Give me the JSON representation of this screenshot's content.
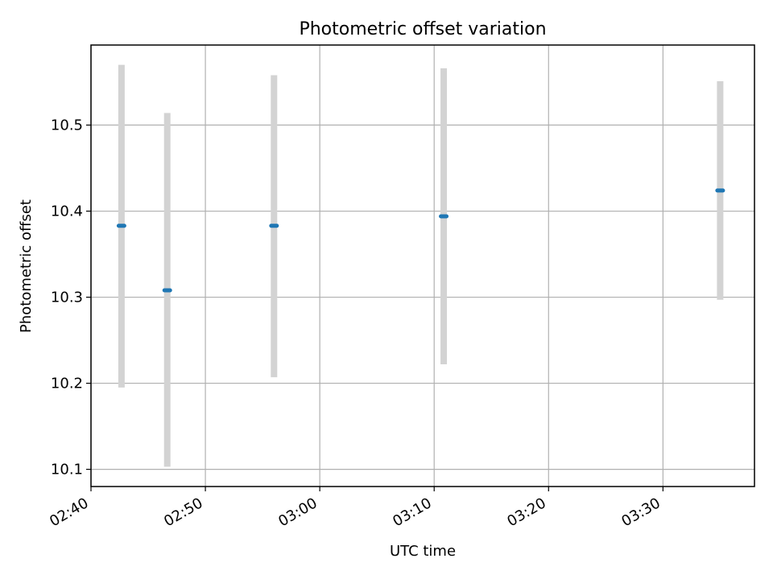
{
  "chart_data": {
    "type": "scatter",
    "title": "Photometric offset variation",
    "xlabel": "UTC time",
    "ylabel": "Photometric offset",
    "xlim": [
      "02:40",
      "03:38"
    ],
    "ylim": [
      10.08,
      10.593
    ],
    "grid": true,
    "x_ticks": [
      "02:40",
      "02:50",
      "03:00",
      "03:10",
      "03:20",
      "03:30"
    ],
    "y_ticks": [
      "10.1",
      "10.2",
      "10.3",
      "10.4",
      "10.5"
    ],
    "series": [
      {
        "points": [
          {
            "x": "02:42:40",
            "y": 10.383,
            "ylow": 10.195,
            "yhigh": 10.57
          },
          {
            "x": "02:46:40",
            "y": 10.308,
            "ylow": 10.103,
            "yhigh": 10.514
          },
          {
            "x": "02:56:00",
            "y": 10.383,
            "ylow": 10.207,
            "yhigh": 10.558
          },
          {
            "x": "03:10:50",
            "y": 10.394,
            "ylow": 10.222,
            "yhigh": 10.566
          },
          {
            "x": "03:35:00",
            "y": 10.424,
            "ylow": 10.297,
            "yhigh": 10.551
          }
        ]
      }
    ],
    "colors": {
      "marker": "#1f77b4",
      "errorbar": "#d3d3d3",
      "grid": "#b0b0b0",
      "axes": "#000000"
    }
  }
}
